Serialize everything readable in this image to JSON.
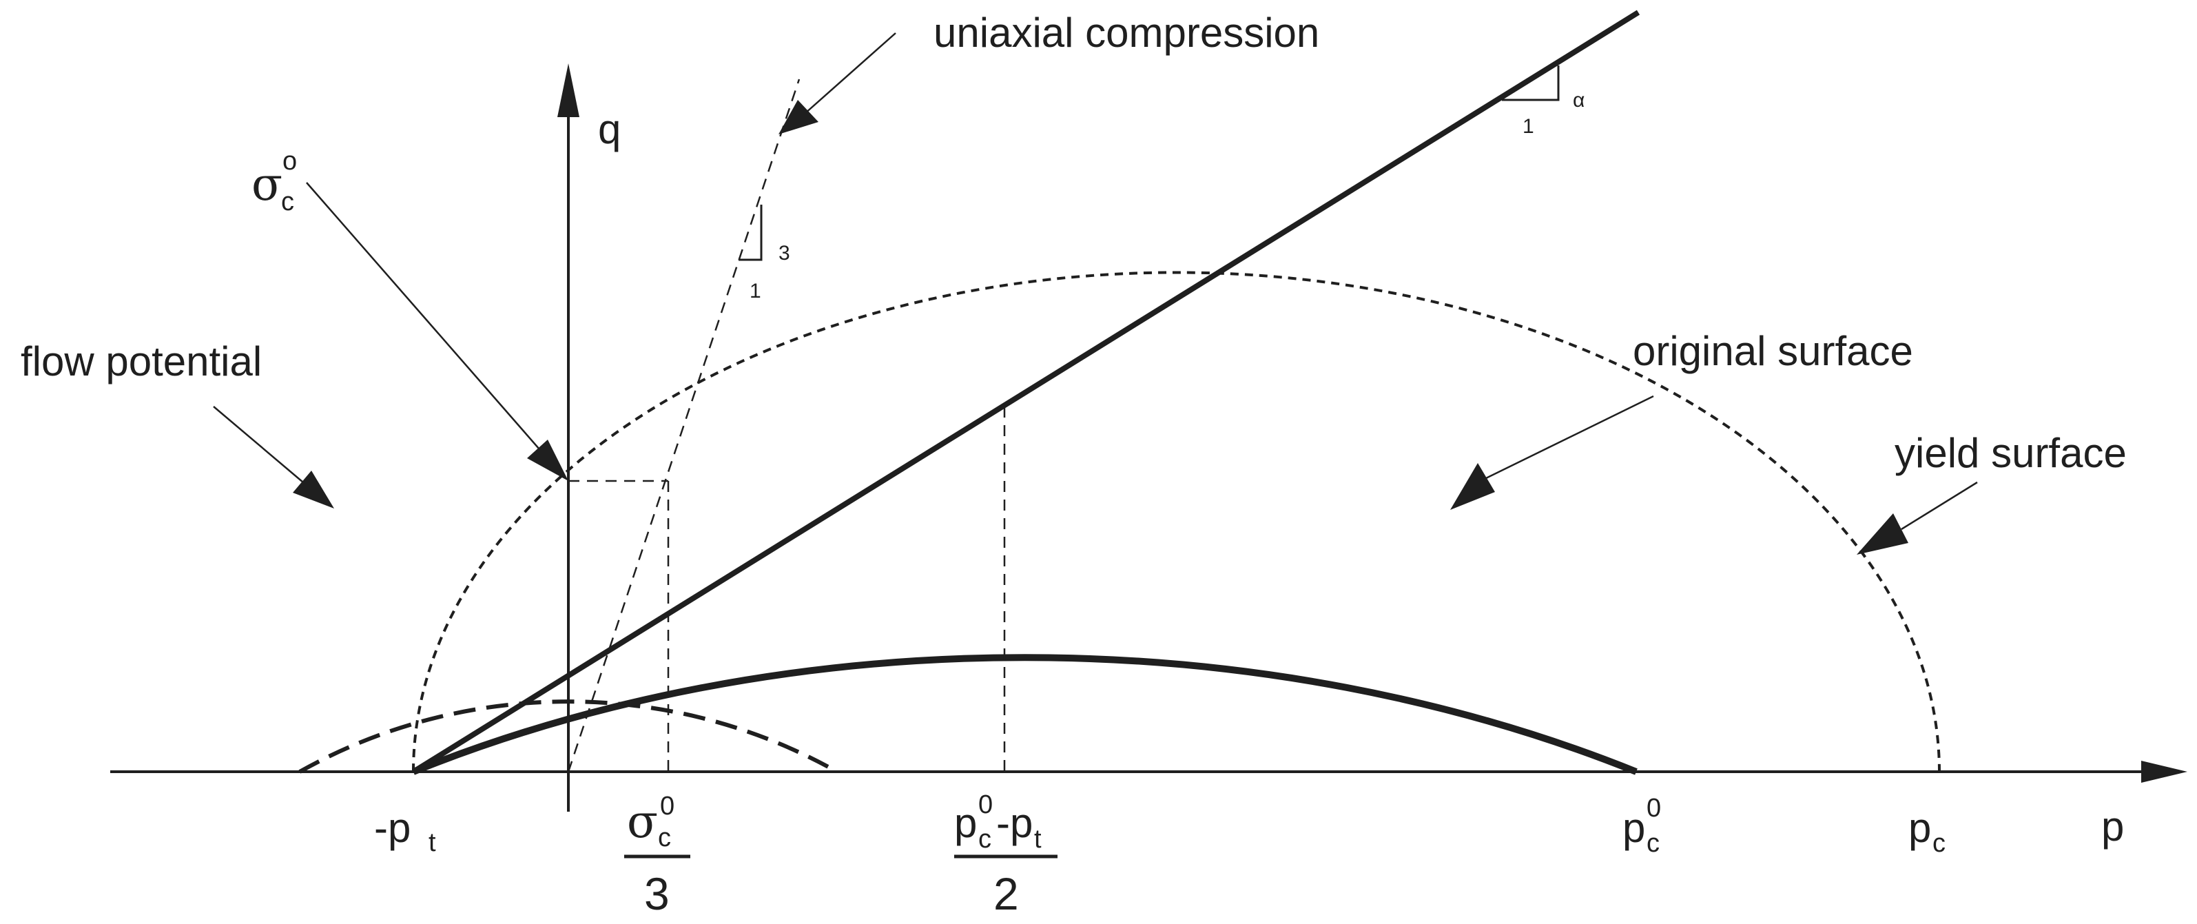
{
  "axes": {
    "q_label": "q",
    "p_label": "p"
  },
  "curves": {
    "flow_potential_label": "flow potential",
    "original_surface_label": "original surface",
    "yield_surface_label": "yield surface",
    "uniaxial_compression_label": "uniaxial compression"
  },
  "symbols": {
    "sigma_c0": {
      "base": "σ",
      "sub": "c",
      "sup": "o"
    },
    "alpha": "α",
    "alpha_run": "1",
    "uniaxial_rise": "3",
    "uniaxial_run": "1"
  },
  "p_ticks": {
    "minus_pt": {
      "base": "-p",
      "sub": "t"
    },
    "sigma_over_3": {
      "num_base": "σ",
      "num_sub": "c",
      "num_sup": "0",
      "den": "3"
    },
    "half": {
      "a_base": "p",
      "a_sub": "c",
      "a_sup": "0",
      "minus": "-p",
      "b_sub": "t",
      "den": "2"
    },
    "pc0": {
      "base": "p",
      "sub": "c",
      "sup": "0"
    },
    "pc": {
      "base": "p",
      "sub": "c"
    }
  }
}
